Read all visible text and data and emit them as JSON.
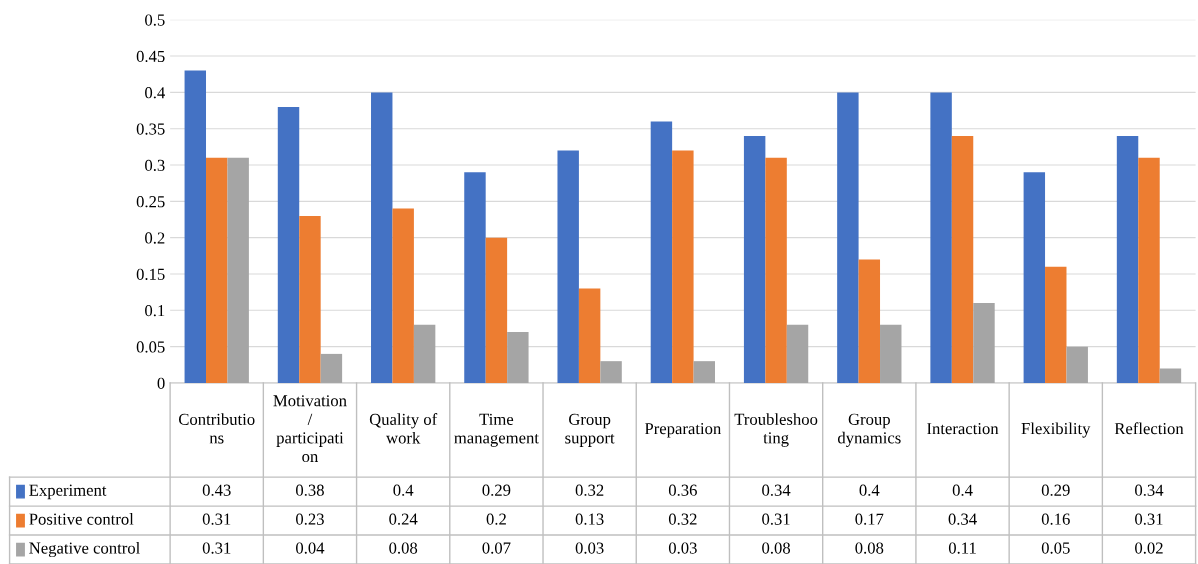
{
  "chart_data": {
    "type": "bar",
    "categories": [
      "Contributions",
      "Motivation / participation",
      "Quality of work",
      "Time management",
      "Group support",
      "Preparation",
      "Troubleshooting",
      "Group dynamics",
      "Interaction",
      "Flexibility",
      "Reflection"
    ],
    "series": [
      {
        "name": "Experiment",
        "color": "#4472c4",
        "values": [
          0.43,
          0.38,
          0.4,
          0.29,
          0.32,
          0.36,
          0.34,
          0.4,
          0.4,
          0.29,
          0.34
        ]
      },
      {
        "name": "Positive control",
        "color": "#ed7d31",
        "values": [
          0.31,
          0.23,
          0.24,
          0.2,
          0.13,
          0.32,
          0.31,
          0.17,
          0.34,
          0.16,
          0.31
        ]
      },
      {
        "name": "Negative control",
        "color": "#a5a5a5",
        "values": [
          0.31,
          0.04,
          0.08,
          0.07,
          0.03,
          0.03,
          0.08,
          0.08,
          0.11,
          0.05,
          0.02
        ]
      }
    ],
    "ylim": [
      0,
      0.5
    ],
    "yticks": [
      0,
      0.05,
      0.1,
      0.15,
      0.2,
      0.25,
      0.3,
      0.35,
      0.4,
      0.45,
      0.5
    ],
    "grid": "y",
    "data_labels": true,
    "legend": "bottom"
  }
}
